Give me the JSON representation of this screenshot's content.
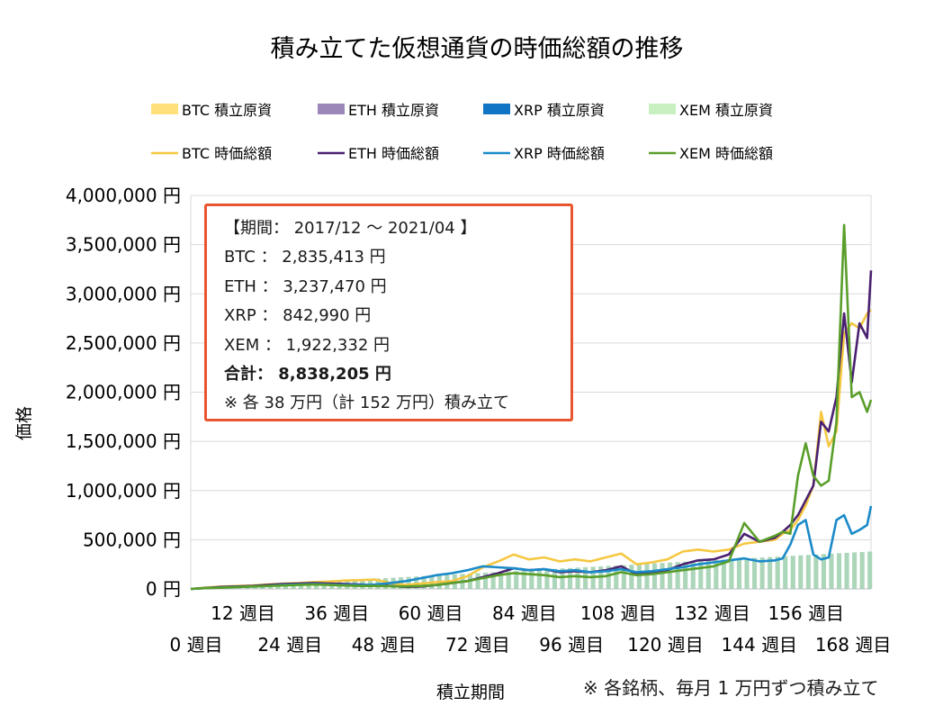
{
  "chart_data": {
    "type": "line",
    "title": "積み立てた仮想通貨の時価総額の推移",
    "xlabel": "積立期間",
    "ylabel": "価格",
    "ylim": [
      0,
      4000000
    ],
    "y_ticks": [
      "0 円",
      "500,000 円",
      "1,000,000 円",
      "1,500,000 円",
      "2,000,000 円",
      "2,500,000 円",
      "3,000,000 円",
      "3,500,000 円",
      "4,000,000 円"
    ],
    "x_ticks_top": [
      "12 週目",
      "36 週目",
      "60 週目",
      "84 週目",
      "108 週目",
      "132 週目",
      "156 週目"
    ],
    "x_ticks_bottom": [
      "0 週目",
      "24 週目",
      "48 週目",
      "72 週目",
      "96 週目",
      "120 週目",
      "144 週目",
      "168 週目"
    ],
    "grid": true,
    "legend_position": "top",
    "legend": [
      {
        "label": "BTC  積立原資",
        "kind": "bar",
        "color": "#ffe07a"
      },
      {
        "label": "ETH  積立原資",
        "kind": "bar",
        "color": "#9b88b8"
      },
      {
        "label": "XRP  積立原資",
        "kind": "bar",
        "color": "#1075c5"
      },
      {
        "label": "XEM  積立原資",
        "kind": "bar",
        "color": "#c9f0c0"
      },
      {
        "label": "BTC  時価総額",
        "kind": "line",
        "color": "#f5c842"
      },
      {
        "label": "ETH  時価総額",
        "kind": "line",
        "color": "#4a2070"
      },
      {
        "label": "XRP  時価総額",
        "kind": "line",
        "color": "#1a8ac9"
      },
      {
        "label": "XEM  時価総額",
        "kind": "line",
        "color": "#5a9e2a"
      }
    ],
    "x": [
      0,
      4,
      8,
      12,
      16,
      20,
      24,
      28,
      32,
      36,
      40,
      44,
      48,
      52,
      56,
      60,
      64,
      68,
      72,
      76,
      80,
      84,
      88,
      92,
      96,
      100,
      104,
      108,
      112,
      116,
      120,
      124,
      128,
      132,
      136,
      140,
      144,
      148,
      152,
      154,
      156,
      158,
      160,
      162,
      164,
      166,
      168,
      170,
      172,
      174,
      176,
      177
    ],
    "series": [
      {
        "name": "BTC  時価総額",
        "color": "#f5c842",
        "values": [
          0,
          15000,
          25000,
          30000,
          35000,
          45000,
          55000,
          60000,
          70000,
          75000,
          85000,
          90000,
          95000,
          60000,
          40000,
          55000,
          70000,
          80000,
          130000,
          220000,
          280000,
          350000,
          300000,
          320000,
          280000,
          300000,
          280000,
          320000,
          360000,
          250000,
          270000,
          300000,
          380000,
          400000,
          380000,
          400000,
          460000,
          480000,
          500000,
          560000,
          600000,
          700000,
          850000,
          1050000,
          1800000,
          1450000,
          1600000,
          2600000,
          2700000,
          2650000,
          2800000,
          2835413
        ]
      },
      {
        "name": "ETH  時価総額",
        "color": "#4a2070",
        "values": [
          0,
          10000,
          20000,
          25000,
          30000,
          40000,
          50000,
          55000,
          60000,
          55000,
          50000,
          45000,
          40000,
          30000,
          20000,
          25000,
          40000,
          60000,
          80000,
          120000,
          160000,
          210000,
          190000,
          200000,
          170000,
          180000,
          170000,
          190000,
          230000,
          150000,
          170000,
          190000,
          250000,
          290000,
          300000,
          350000,
          560000,
          480000,
          520000,
          580000,
          650000,
          750000,
          900000,
          1050000,
          1700000,
          1600000,
          1950000,
          2800000,
          2100000,
          2700000,
          2550000,
          3237470
        ]
      },
      {
        "name": "XRP  時価総額",
        "color": "#1a8ac9",
        "values": [
          0,
          8000,
          15000,
          20000,
          25000,
          30000,
          40000,
          45000,
          50000,
          45000,
          40000,
          40000,
          45000,
          60000,
          80000,
          110000,
          140000,
          160000,
          190000,
          230000,
          220000,
          210000,
          190000,
          200000,
          180000,
          190000,
          170000,
          180000,
          200000,
          170000,
          180000,
          200000,
          220000,
          250000,
          270000,
          290000,
          310000,
          280000,
          290000,
          310000,
          450000,
          650000,
          700000,
          350000,
          300000,
          320000,
          700000,
          750000,
          560000,
          600000,
          650000,
          842990
        ]
      },
      {
        "name": "XEM  時価総額",
        "color": "#5a9e2a",
        "values": [
          0,
          8000,
          12000,
          18000,
          25000,
          30000,
          35000,
          40000,
          45000,
          40000,
          35000,
          30000,
          30000,
          28000,
          25000,
          30000,
          40000,
          60000,
          80000,
          110000,
          140000,
          160000,
          150000,
          140000,
          120000,
          130000,
          120000,
          130000,
          170000,
          140000,
          150000,
          170000,
          190000,
          210000,
          230000,
          280000,
          670000,
          480000,
          540000,
          580000,
          560000,
          1150000,
          1480000,
          1150000,
          1050000,
          1100000,
          1700000,
          3700000,
          1950000,
          2000000,
          1800000,
          1922332
        ]
      }
    ],
    "principal_bars": {
      "weeks_total": 177,
      "max_value": 380000,
      "color": "#9ccfae"
    }
  },
  "info_box": {
    "lines": [
      "【期間： 2017/12 ～ 2021/04 】",
      "BTC ： 2,835,413 円",
      "ETH ： 3,237,470 円",
      "XRP ： 842,990 円",
      "XEM ： 1,922,332 円",
      "合計： 8,838,205 円",
      "※ 各 38 万円（計 152 万円）積み立て"
    ]
  },
  "footnote": "※ 各銘柄、毎月 1 万円ずつ積み立て"
}
